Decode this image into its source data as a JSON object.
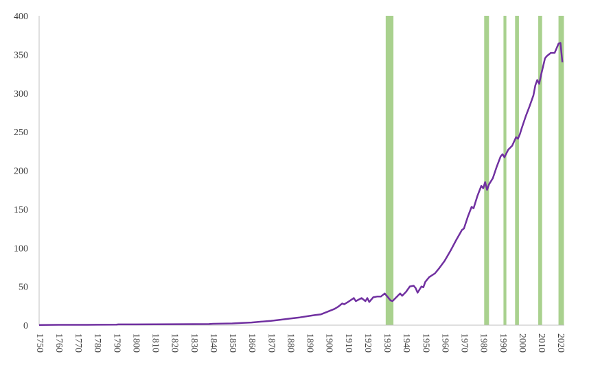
{
  "chart_data": {
    "type": "line",
    "title": "",
    "xlabel": "",
    "ylabel": "",
    "xlim": [
      1750,
      2022
    ],
    "ylim": [
      0,
      400
    ],
    "y_ticks": [
      0,
      50,
      100,
      150,
      200,
      250,
      300,
      350,
      400
    ],
    "x_ticks": [
      1750,
      1760,
      1770,
      1780,
      1790,
      1800,
      1810,
      1820,
      1830,
      1840,
      1850,
      1860,
      1870,
      1880,
      1890,
      1900,
      1910,
      1920,
      1930,
      1940,
      1950,
      1960,
      1970,
      1980,
      1990,
      2000,
      2010,
      2020
    ],
    "grid": false,
    "legend": "none",
    "line_color": "#7030a0",
    "band_color": "#a9d18e",
    "shaded_periods": [
      [
        1929.5,
        1933.5
      ],
      [
        1980.5,
        1983.0
      ],
      [
        1990.5,
        1992.0
      ],
      [
        1996.5,
        1998.5
      ],
      [
        2008.5,
        2010.5
      ],
      [
        2019.0,
        2021.8
      ]
    ],
    "series": [
      {
        "values": [
          [
            1750,
            0.3
          ],
          [
            1760,
            0.4
          ],
          [
            1770,
            0.4
          ],
          [
            1780,
            0.5
          ],
          [
            1790,
            0.7
          ],
          [
            1791,
            1.0
          ],
          [
            1800,
            1.0
          ],
          [
            1810,
            1.1
          ],
          [
            1820,
            1.2
          ],
          [
            1830,
            1.3
          ],
          [
            1838,
            1.4
          ],
          [
            1840,
            1.8
          ],
          [
            1845,
            2.0
          ],
          [
            1850,
            2.2
          ],
          [
            1855,
            2.8
          ],
          [
            1860,
            3.5
          ],
          [
            1865,
            4.5
          ],
          [
            1870,
            5.5
          ],
          [
            1875,
            7.0
          ],
          [
            1880,
            8.5
          ],
          [
            1885,
            10
          ],
          [
            1890,
            12
          ],
          [
            1893,
            13
          ],
          [
            1896,
            14
          ],
          [
            1900,
            18
          ],
          [
            1903,
            21
          ],
          [
            1905,
            24
          ],
          [
            1907,
            28
          ],
          [
            1908,
            27
          ],
          [
            1910,
            30
          ],
          [
            1913,
            35
          ],
          [
            1914,
            31
          ],
          [
            1917,
            35
          ],
          [
            1919,
            31
          ],
          [
            1920,
            35
          ],
          [
            1921,
            30
          ],
          [
            1923,
            36
          ],
          [
            1925,
            37
          ],
          [
            1927,
            37
          ],
          [
            1929,
            41
          ],
          [
            1930,
            38
          ],
          [
            1932,
            32
          ],
          [
            1933,
            31
          ],
          [
            1935,
            36
          ],
          [
            1937,
            41
          ],
          [
            1938,
            38
          ],
          [
            1940,
            43
          ],
          [
            1942,
            50
          ],
          [
            1944,
            51
          ],
          [
            1945,
            48
          ],
          [
            1946,
            42
          ],
          [
            1948,
            50
          ],
          [
            1949,
            49
          ],
          [
            1950,
            56
          ],
          [
            1952,
            62
          ],
          [
            1955,
            67
          ],
          [
            1957,
            73
          ],
          [
            1960,
            83
          ],
          [
            1963,
            96
          ],
          [
            1966,
            110
          ],
          [
            1969,
            123
          ],
          [
            1970,
            125
          ],
          [
            1972,
            140
          ],
          [
            1974,
            153
          ],
          [
            1975,
            151
          ],
          [
            1977,
            167
          ],
          [
            1979,
            180
          ],
          [
            1980,
            177
          ],
          [
            1981,
            185
          ],
          [
            1982,
            175
          ],
          [
            1983,
            182
          ],
          [
            1985,
            190
          ],
          [
            1987,
            205
          ],
          [
            1989,
            218
          ],
          [
            1990,
            221
          ],
          [
            1991,
            217
          ],
          [
            1993,
            227
          ],
          [
            1995,
            232
          ],
          [
            1997,
            243
          ],
          [
            1998,
            241
          ],
          [
            1999,
            247
          ],
          [
            2000,
            255
          ],
          [
            2002,
            270
          ],
          [
            2004,
            283
          ],
          [
            2006,
            297
          ],
          [
            2007,
            310
          ],
          [
            2008,
            317
          ],
          [
            2009,
            312
          ],
          [
            2010,
            324
          ],
          [
            2012,
            345
          ],
          [
            2013,
            348
          ],
          [
            2015,
            352
          ],
          [
            2016,
            352
          ],
          [
            2017,
            352
          ],
          [
            2018,
            358
          ],
          [
            2019,
            364
          ],
          [
            2020,
            365
          ],
          [
            2021,
            340
          ]
        ]
      }
    ]
  }
}
